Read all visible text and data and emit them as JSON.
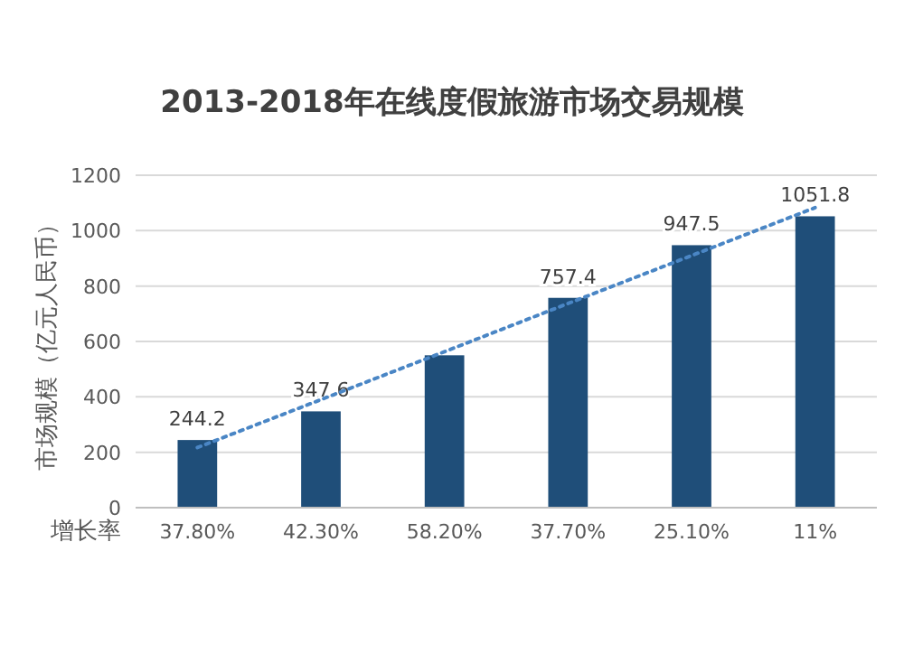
{
  "chart_data": {
    "type": "bar",
    "title": "2013-2018年在线度假旅游市场交易规模",
    "ylabel": "市场规模（亿元人民币）",
    "categories": [
      null,
      null,
      null,
      null,
      null,
      null
    ],
    "series": [
      {
        "color": "#1f4e79",
        "values": [
          244.2,
          347.6,
          550,
          757.4,
          947.5,
          1051.8
        ],
        "value_labels": [
          "244.2",
          "347.6",
          null,
          "757.4",
          "947.5",
          "1051.8"
        ]
      },
      {
        "type": "line",
        "color": "#4a86c5",
        "line_style": "dotted",
        "marker": "none",
        "values": [
          217,
          390,
          563,
          737,
          910,
          1083
        ]
      }
    ],
    "ylim": [
      0,
      1200
    ],
    "yticks": [
      0,
      200,
      400,
      600,
      800,
      1000,
      1200
    ],
    "grid": "y",
    "annotations": [
      "增长率",
      "37.80%",
      "42.30%",
      "58.20%",
      "37.70%",
      "25.10%",
      "11%"
    ]
  }
}
